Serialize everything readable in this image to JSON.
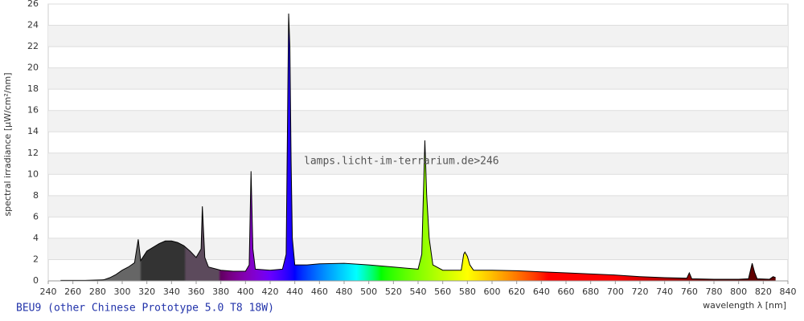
{
  "chart_data": {
    "type": "area",
    "title": "BEU9 (other Chinese Prototype 5.0 T8 18W)",
    "watermark": "lamps.licht-im-terrarium.de>246",
    "x_label": "wavelength λ [nm]",
    "y_label": "spectral irradiance [µW/cm²/nm]",
    "x": [
      250,
      270,
      285,
      290,
      295,
      300,
      305,
      310,
      313,
      315,
      320,
      330,
      335,
      340,
      345,
      350,
      355,
      360,
      364,
      365,
      367,
      370,
      380,
      390,
      400,
      403,
      404.5,
      406,
      408,
      420,
      430,
      433,
      435,
      436,
      437,
      438,
      440,
      450,
      460,
      480,
      500,
      520,
      540,
      543,
      545.5,
      547,
      549,
      552,
      560,
      575,
      577,
      578,
      580,
      582,
      585,
      600,
      620,
      640,
      660,
      680,
      700,
      720,
      740,
      758,
      760,
      762,
      780,
      800,
      808,
      811,
      813,
      815,
      825,
      828,
      830
    ],
    "values": [
      0.05,
      0.05,
      0.1,
      0.3,
      0.6,
      1.0,
      1.3,
      1.7,
      3.9,
      1.9,
      2.8,
      3.5,
      3.75,
      3.75,
      3.6,
      3.3,
      2.8,
      2.2,
      3.0,
      7.0,
      2.2,
      1.3,
      1.0,
      0.9,
      0.9,
      1.5,
      10.3,
      3.0,
      1.1,
      1.0,
      1.1,
      2.5,
      25.1,
      22,
      11.3,
      4,
      1.5,
      1.5,
      1.6,
      1.65,
      1.5,
      1.3,
      1.1,
      2.5,
      13.2,
      8,
      4,
      1.5,
      1.0,
      1.0,
      2.5,
      2.7,
      2.3,
      1.5,
      1.0,
      1.0,
      0.95,
      0.85,
      0.75,
      0.65,
      0.55,
      0.4,
      0.3,
      0.25,
      0.75,
      0.2,
      0.15,
      0.15,
      0.2,
      1.65,
      0.8,
      0.2,
      0.15,
      0.4,
      0.3
    ],
    "color": "#000000",
    "xlim": [
      240,
      840
    ],
    "ylim": [
      0,
      26
    ],
    "xticks": [
      240,
      260,
      280,
      300,
      320,
      340,
      360,
      380,
      400,
      420,
      440,
      460,
      480,
      500,
      520,
      540,
      560,
      580,
      600,
      620,
      640,
      660,
      680,
      700,
      720,
      740,
      760,
      780,
      800,
      820,
      840
    ],
    "yticks": [
      0,
      2,
      4,
      6,
      8,
      10,
      12,
      14,
      16,
      18,
      20,
      22,
      24,
      26
    ],
    "grid": true
  }
}
